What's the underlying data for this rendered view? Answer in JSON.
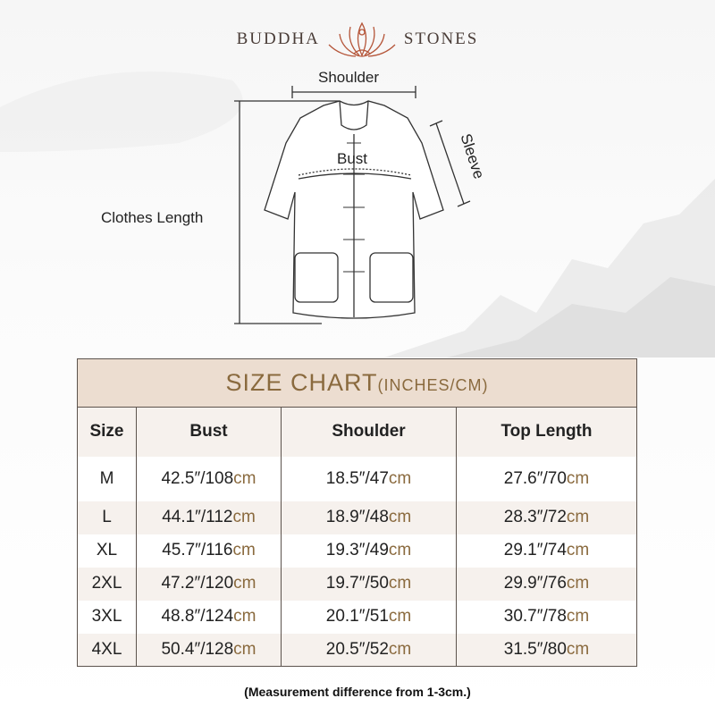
{
  "brand": {
    "left": "BUDDHA",
    "right": "STONES",
    "logo_icon": "lotus-meditation-icon",
    "color": "#b5563a"
  },
  "diagram": {
    "shoulder": "Shoulder",
    "bust": "Bust",
    "sleeve": "Sleeve",
    "clothes_length": "Clothes Length"
  },
  "table": {
    "title": "SIZE CHART",
    "title_units": "(INCHES/CM)",
    "headers": [
      "Size",
      "Bust",
      "Shoulder",
      "Top Length"
    ],
    "rows": [
      {
        "size": "M",
        "bust": "42.5″/108",
        "shoulder": "18.5″/47",
        "length": "27.6″/70"
      },
      {
        "size": "L",
        "bust": "44.1″/112",
        "shoulder": "18.9″/48",
        "length": "28.3″/72"
      },
      {
        "size": "XL",
        "bust": "45.7″/116",
        "shoulder": "19.3″/49",
        "length": "29.1″/74"
      },
      {
        "size": "2XL",
        "bust": "47.2″/120",
        "shoulder": "19.7″/50",
        "length": "29.9″/76"
      },
      {
        "size": "3XL",
        "bust": "48.8″/124",
        "shoulder": "20.1″/51",
        "length": "30.7″/78"
      },
      {
        "size": "4XL",
        "bust": "50.4″/128",
        "shoulder": "20.5″/52",
        "length": "31.5″/80"
      }
    ],
    "unit": "cm",
    "colors": {
      "title_bg": "#ecddd0",
      "accent": "#8a6a3e",
      "alt_row": "#f6f1ed"
    }
  },
  "note": "(Measurement difference from 1-3cm.)"
}
